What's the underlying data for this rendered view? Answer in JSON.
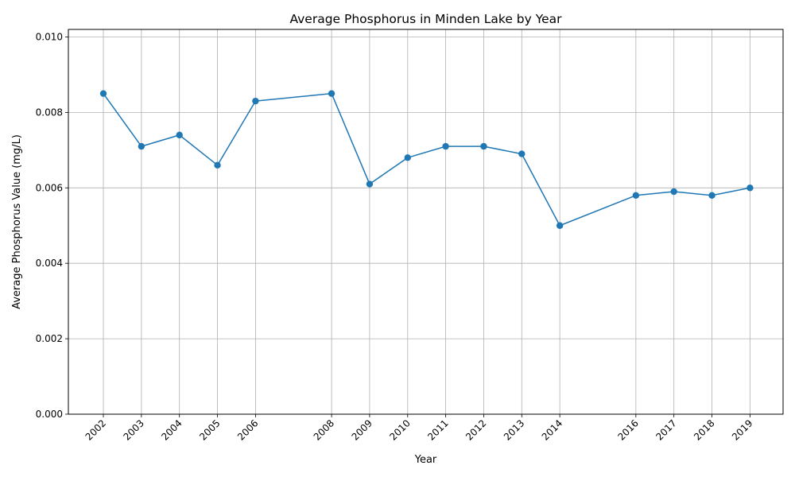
{
  "chart_data": {
    "type": "line",
    "title": "Average Phosphorus in Minden Lake by Year",
    "xlabel": "Year",
    "ylabel": "Average Phosphorus Value (mg/L)",
    "x": [
      2002,
      2003,
      2004,
      2005,
      2006,
      2008,
      2009,
      2010,
      2011,
      2012,
      2013,
      2014,
      2016,
      2017,
      2018,
      2019
    ],
    "x_tick_labels": [
      "2002",
      "2003",
      "2004",
      "2005",
      "2006",
      "2008",
      "2009",
      "2010",
      "2011",
      "2012",
      "2013",
      "2014",
      "2016",
      "2017",
      "2018",
      "2019"
    ],
    "series": [
      {
        "values": [
          0.0085,
          0.0071,
          0.0074,
          0.0066,
          0.0083,
          0.0085,
          0.0061,
          0.0068,
          0.0071,
          0.0071,
          0.0069,
          0.005,
          0.0058,
          0.0059,
          0.0058,
          0.006
        ],
        "color": "#1f77b4",
        "marker": "circle"
      }
    ],
    "xlim": [
      2001.08,
      2019.87
    ],
    "ylim": [
      0,
      0.0102
    ],
    "y_ticks": [
      0,
      0.002,
      0.004,
      0.006,
      0.008,
      0.01
    ],
    "y_tick_labels": [
      "0.000",
      "0.002",
      "0.004",
      "0.006",
      "0.008",
      "0.010"
    ],
    "grid": true,
    "x_tick_rotation": "45 degrees",
    "grid_color": "#b0b0b0"
  }
}
